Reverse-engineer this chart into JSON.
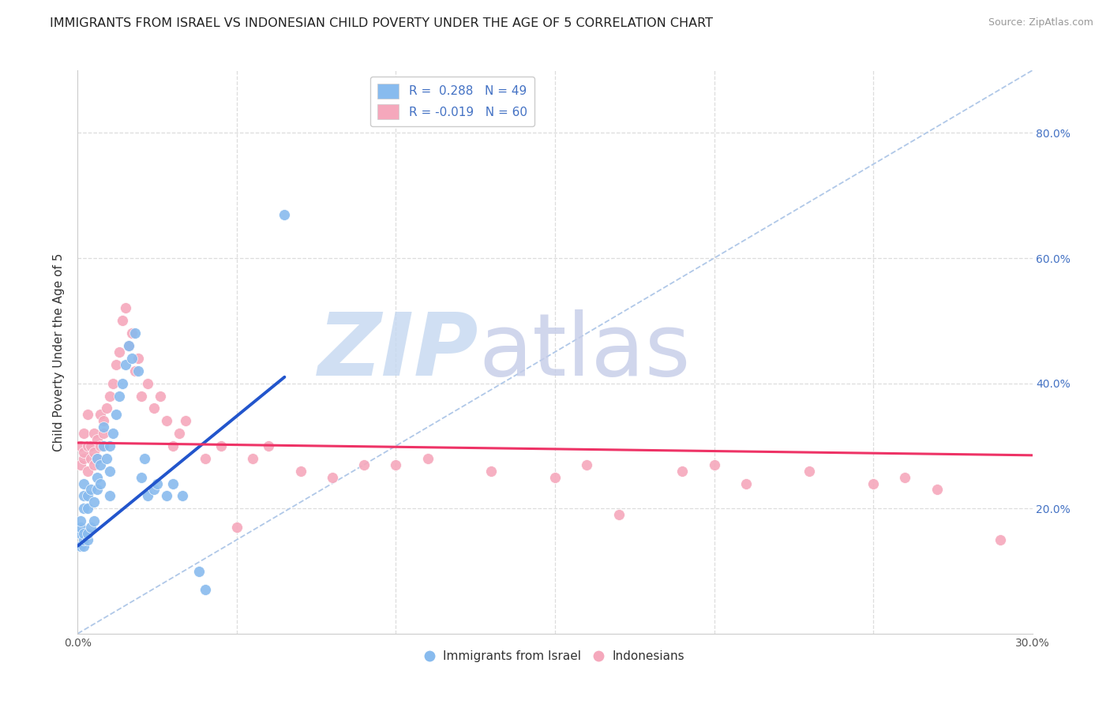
{
  "title": "IMMIGRANTS FROM ISRAEL VS INDONESIAN CHILD POVERTY UNDER THE AGE OF 5 CORRELATION CHART",
  "source": "Source: ZipAtlas.com",
  "ylabel": "Child Poverty Under the Age of 5",
  "xlim": [
    0.0,
    0.3
  ],
  "ylim": [
    0.0,
    0.9
  ],
  "xticks": [
    0.0,
    0.05,
    0.1,
    0.15,
    0.2,
    0.25,
    0.3
  ],
  "yticks_right": [
    0.2,
    0.4,
    0.6,
    0.8
  ],
  "yticklabels_right": [
    "20.0%",
    "40.0%",
    "60.0%",
    "80.0%"
  ],
  "blue_R": 0.288,
  "blue_N": 49,
  "pink_R": -0.019,
  "pink_N": 60,
  "blue_color": "#88bbee",
  "pink_color": "#f5a8bc",
  "blue_scatter_x": [
    0.001,
    0.001,
    0.001,
    0.001,
    0.002,
    0.002,
    0.002,
    0.002,
    0.002,
    0.002,
    0.003,
    0.003,
    0.003,
    0.003,
    0.004,
    0.004,
    0.005,
    0.005,
    0.006,
    0.006,
    0.006,
    0.007,
    0.007,
    0.008,
    0.008,
    0.009,
    0.01,
    0.01,
    0.01,
    0.011,
    0.012,
    0.013,
    0.014,
    0.015,
    0.016,
    0.017,
    0.018,
    0.019,
    0.02,
    0.021,
    0.022,
    0.024,
    0.025,
    0.028,
    0.03,
    0.033,
    0.038,
    0.04,
    0.065
  ],
  "blue_scatter_y": [
    0.14,
    0.16,
    0.17,
    0.18,
    0.14,
    0.15,
    0.16,
    0.2,
    0.22,
    0.24,
    0.15,
    0.16,
    0.2,
    0.22,
    0.17,
    0.23,
    0.18,
    0.21,
    0.23,
    0.25,
    0.28,
    0.24,
    0.27,
    0.3,
    0.33,
    0.28,
    0.22,
    0.26,
    0.3,
    0.32,
    0.35,
    0.38,
    0.4,
    0.43,
    0.46,
    0.44,
    0.48,
    0.42,
    0.25,
    0.28,
    0.22,
    0.23,
    0.24,
    0.22,
    0.24,
    0.22,
    0.1,
    0.07,
    0.67
  ],
  "pink_scatter_x": [
    0.001,
    0.001,
    0.002,
    0.002,
    0.002,
    0.003,
    0.003,
    0.003,
    0.004,
    0.004,
    0.005,
    0.005,
    0.005,
    0.006,
    0.006,
    0.007,
    0.007,
    0.008,
    0.008,
    0.009,
    0.01,
    0.011,
    0.012,
    0.013,
    0.014,
    0.015,
    0.016,
    0.017,
    0.018,
    0.019,
    0.02,
    0.022,
    0.024,
    0.026,
    0.028,
    0.03,
    0.032,
    0.034,
    0.04,
    0.045,
    0.05,
    0.055,
    0.06,
    0.07,
    0.08,
    0.09,
    0.1,
    0.11,
    0.13,
    0.15,
    0.16,
    0.17,
    0.19,
    0.2,
    0.21,
    0.23,
    0.25,
    0.26,
    0.27,
    0.29
  ],
  "pink_scatter_y": [
    0.27,
    0.3,
    0.28,
    0.29,
    0.32,
    0.26,
    0.3,
    0.35,
    0.28,
    0.3,
    0.27,
    0.29,
    0.32,
    0.28,
    0.31,
    0.3,
    0.35,
    0.32,
    0.34,
    0.36,
    0.38,
    0.4,
    0.43,
    0.45,
    0.5,
    0.52,
    0.46,
    0.48,
    0.42,
    0.44,
    0.38,
    0.4,
    0.36,
    0.38,
    0.34,
    0.3,
    0.32,
    0.34,
    0.28,
    0.3,
    0.17,
    0.28,
    0.3,
    0.26,
    0.25,
    0.27,
    0.27,
    0.28,
    0.26,
    0.25,
    0.27,
    0.19,
    0.26,
    0.27,
    0.24,
    0.26,
    0.24,
    0.25,
    0.23,
    0.15
  ],
  "blue_trend_x": [
    0.0,
    0.065
  ],
  "blue_trend_y": [
    0.14,
    0.41
  ],
  "pink_trend_x": [
    0.0,
    0.3
  ],
  "pink_trend_y": [
    0.305,
    0.285
  ],
  "diag_line_x": [
    0.0,
    0.3
  ],
  "diag_line_y": [
    0.0,
    0.9
  ],
  "watermark_zip": "ZIP",
  "watermark_atlas": "atlas",
  "watermark_color_zip": "#c5d8f0",
  "watermark_color_atlas": "#c5cce8",
  "title_fontsize": 11.5,
  "axis_label_fontsize": 11,
  "tick_fontsize": 10,
  "legend_fontsize": 11,
  "scatter_size": 100,
  "background_color": "#ffffff",
  "grid_color": "#dddddd"
}
